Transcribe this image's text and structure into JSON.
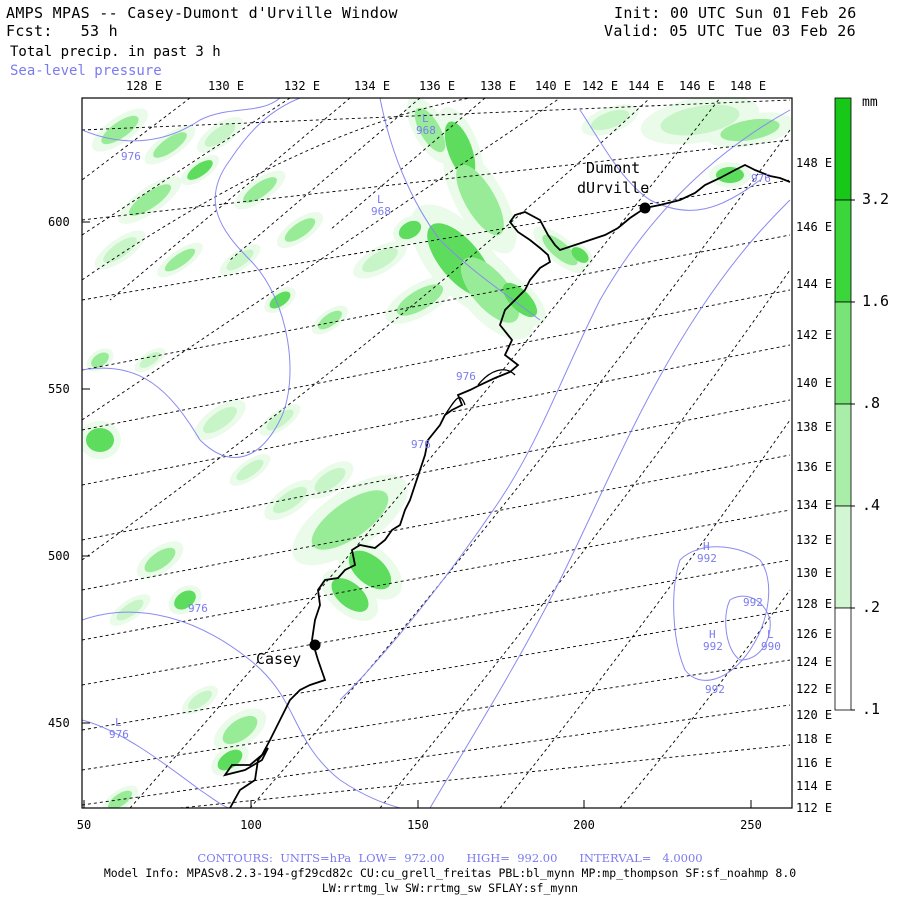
{
  "header": {
    "title": "AMPS MPAS -- Casey-Dumont d'Urville Window",
    "forecast": "Fcst:   53 h",
    "field": "Total precip. in past 3 h",
    "overlay": "Sea-level pressure",
    "init": "Init: 00 UTC Sun 01 Feb 26",
    "valid": "Valid: 05 UTC Tue 03 Feb 26"
  },
  "map": {
    "top_lon_labels": [
      "128 E",
      "130 E",
      "132 E",
      "134 E",
      "136 E",
      "138 E",
      "140 E",
      "142 E",
      "144 E",
      "146 E",
      "148 E"
    ],
    "right_lon_labels": [
      "148 E",
      "146 E",
      "144 E",
      "142 E",
      "140 E",
      "138 E",
      "136 E",
      "134 E",
      "132 E",
      "130 E",
      "128 E",
      "126 E",
      "124 E",
      "122 E",
      "120 E",
      "118 E",
      "116 E",
      "114 E",
      "112 E"
    ],
    "y_ticks": [
      "600",
      "550",
      "500",
      "450"
    ],
    "x_ticks": [
      "50",
      "100",
      "150",
      "200",
      "250"
    ],
    "stations": [
      {
        "name_line1": "Dumont",
        "name_line2": "dUrville"
      },
      {
        "name_line1": "Casey",
        "name_line2": ""
      }
    ],
    "pressure_labels": [
      {
        "letter": "L",
        "value": "968"
      },
      {
        "letter": "L",
        "value": "968"
      },
      {
        "letter": "",
        "value": "976"
      },
      {
        "letter": "",
        "value": "976"
      },
      {
        "letter": "",
        "value": "976"
      },
      {
        "letter": "",
        "value": "976"
      },
      {
        "letter": "L",
        "value": "976"
      },
      {
        "letter": "H",
        "value": "992"
      },
      {
        "letter": "H",
        "value": "992"
      },
      {
        "letter": "",
        "value": "992"
      },
      {
        "letter": "L",
        "value": "990"
      },
      {
        "letter": "",
        "value": "992"
      },
      {
        "letter": "",
        "value": "976"
      }
    ],
    "colors": {
      "precip_light": "#eafbea",
      "precip_1": "#c8f5c8",
      "precip_2": "#98ec98",
      "precip_3": "#5ddc5d",
      "precip_4": "#22cc22",
      "isobar": "#8a8af0",
      "coast": "#000000"
    }
  },
  "colorbar": {
    "unit": "mm",
    "labels": [
      "3.2",
      "1.6",
      ".8",
      ".4",
      ".2",
      ".1"
    ],
    "colors": [
      "#18c818",
      "#3ad63a",
      "#78e478",
      "#a8eda8",
      "#d2f6d2",
      "#ffffff"
    ]
  },
  "footer": {
    "contours": "CONTOURS:  UNITS=hPa  LOW=  972.00      HIGH=  992.00      INTERVAL=   4.0000",
    "model_info": "Model Info: MPASv8.2.3-194-gf29cd82c CU:cu_grell_freitas PBL:bl_mynn MP:mp_thompson SF:sf_noahmp 8.0",
    "physics": "LW:rrtmg_lw SW:rrtmg_sw SFLAY:sf_mynn"
  }
}
